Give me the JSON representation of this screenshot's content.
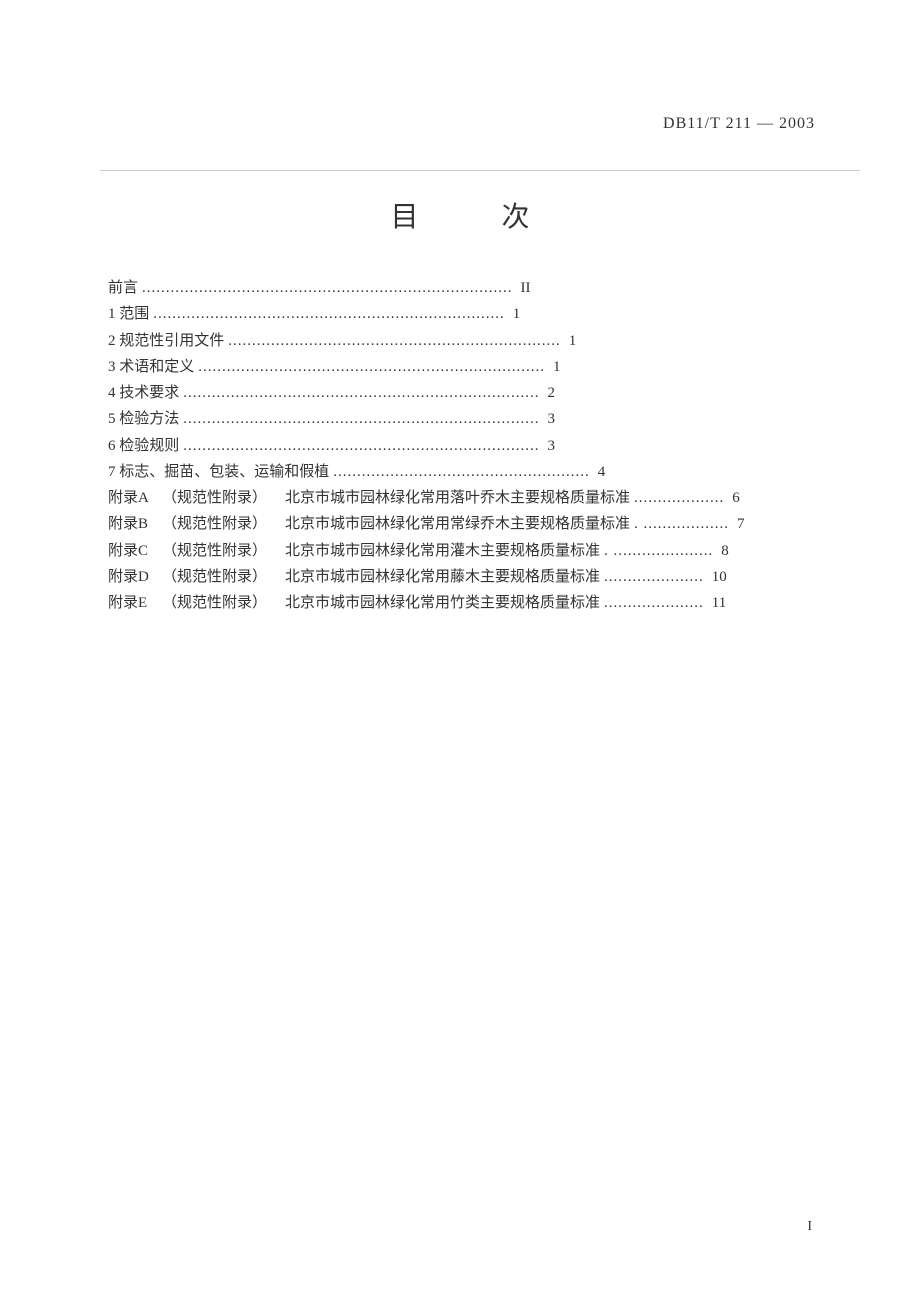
{
  "document_code": "DB11/T 211 — 2003",
  "title": "目    次",
  "toc_main": [
    {
      "label": "前言",
      "dots": "  ..............................................................................",
      "page": "II"
    },
    {
      "label": "1  范围",
      "dots": "  ..........................................................................",
      "page": "1"
    },
    {
      "label": "2  规范性引用文件",
      "dots": "    ......................................................................",
      "page": "1"
    },
    {
      "label": "3  术语和定义",
      "dots": "   .........................................................................",
      "page": "1"
    },
    {
      "label": "4  技术要求",
      "dots": "   ...........................................................................",
      "page": "2"
    },
    {
      "label": "5  检验方法",
      "dots": "   ...........................................................................",
      "page": "3"
    },
    {
      "label": "6  检验规则",
      "dots": "   ...........................................................................",
      "page": "3"
    },
    {
      "label": "7  标志、掘苗、包装、运输和假植",
      "dots": "     ......................................................",
      "page": "4"
    }
  ],
  "toc_appendix": [
    {
      "prefix": "附录",
      "letter": "A",
      "note": "（规范性附录）",
      "desc": "北京市城市园林绿化常用落叶乔木主要规格质量标准",
      "dots": "      ...................",
      "page": "6"
    },
    {
      "prefix": "附录",
      "letter": "B",
      "note": "（规范性附录）",
      "desc": "北京市城市园林绿化常用常绿乔木主要规格质量标准",
      "dots": "       . ..................",
      "page": "7"
    },
    {
      "prefix": "附录",
      "letter": "C",
      "note": "（规范性附录）",
      "desc": "北京市城市园林绿化常用灌木主要规格质量标准",
      "dots": "       . .....................",
      "page": "8"
    },
    {
      "prefix": "附录",
      "letter": "D",
      "note": "（规范性附录）",
      "desc": "北京市城市园林绿化常用藤木主要规格质量标准",
      "dots": "       .....................",
      "page": "10"
    },
    {
      "prefix": "附录",
      "letter": "E",
      "note": "（规范性附录）",
      "desc": "北京市城市园林绿化常用竹类主要规格质量标准",
      "dots": "       .....................",
      "page": "11"
    }
  ],
  "footer": "I",
  "colors": {
    "background": "#ffffff",
    "text": "#333333",
    "divider": "#cccccc"
  },
  "typography": {
    "body_fontsize": 15,
    "title_fontsize": 28,
    "header_fontsize": 16,
    "font_family": "SimSun"
  }
}
